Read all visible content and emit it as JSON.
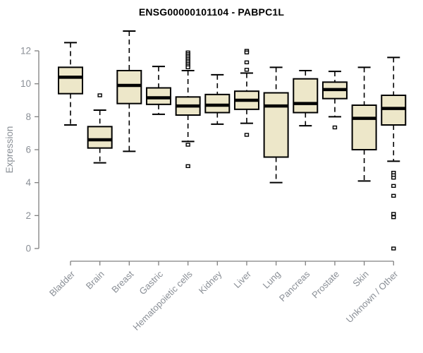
{
  "chart_data": {
    "type": "boxplot",
    "title": "ENSG00000101104 - PABPC1L",
    "ylabel": "Expression",
    "xlabel": "",
    "ylim": [
      0,
      12
    ],
    "yticks": [
      0,
      2,
      4,
      6,
      8,
      10,
      12
    ],
    "grid": false,
    "legend": false,
    "categories": [
      "Bladder",
      "Brain",
      "Breast",
      "Gastric",
      "Hematopoietic cells",
      "Kidney",
      "Liver",
      "Lung",
      "Pancreas",
      "Prostate",
      "Skin",
      "Unknown / Other"
    ],
    "series": [
      {
        "name": "Bladder",
        "min": 7.5,
        "q1": 9.4,
        "median": 10.4,
        "q3": 11.0,
        "max": 12.5,
        "outliers": []
      },
      {
        "name": "Brain",
        "min": 5.2,
        "q1": 6.1,
        "median": 6.6,
        "q3": 7.4,
        "max": 8.4,
        "outliers": [
          9.3
        ]
      },
      {
        "name": "Breast",
        "min": 5.9,
        "q1": 8.8,
        "median": 9.9,
        "q3": 10.8,
        "max": 13.2,
        "outliers": []
      },
      {
        "name": "Gastric",
        "min": 8.15,
        "q1": 8.75,
        "median": 9.15,
        "q3": 9.75,
        "max": 11.05,
        "outliers": []
      },
      {
        "name": "Hematopoietic cells",
        "min": 6.5,
        "q1": 8.1,
        "median": 8.65,
        "q3": 9.2,
        "max": 10.8,
        "outliers": [
          11.9,
          11.8,
          11.7,
          11.6,
          11.5,
          11.4,
          11.3,
          11.2,
          11.1,
          11.0,
          6.3,
          5.0
        ]
      },
      {
        "name": "Kidney",
        "min": 7.55,
        "q1": 8.25,
        "median": 8.7,
        "q3": 9.35,
        "max": 10.55,
        "outliers": []
      },
      {
        "name": "Liver",
        "min": 7.6,
        "q1": 8.45,
        "median": 9.0,
        "q3": 9.55,
        "max": 10.65,
        "outliers": [
          12.0,
          11.9,
          11.3,
          10.85,
          6.9
        ]
      },
      {
        "name": "Lung",
        "min": 4.0,
        "q1": 5.55,
        "median": 8.65,
        "q3": 9.45,
        "max": 11.0,
        "outliers": []
      },
      {
        "name": "Pancreas",
        "min": 7.45,
        "q1": 8.25,
        "median": 8.8,
        "q3": 10.3,
        "max": 10.8,
        "outliers": []
      },
      {
        "name": "Prostate",
        "min": 8.0,
        "q1": 9.1,
        "median": 9.65,
        "q3": 10.1,
        "max": 10.75,
        "outliers": [
          7.35
        ]
      },
      {
        "name": "Skin",
        "min": 4.1,
        "q1": 6.0,
        "median": 7.9,
        "q3": 8.7,
        "max": 11.0,
        "outliers": []
      },
      {
        "name": "Unknown / Other",
        "min": 5.3,
        "q1": 7.5,
        "median": 8.5,
        "q3": 9.3,
        "max": 11.6,
        "outliers": [
          4.6,
          4.45,
          4.3,
          3.8,
          3.2,
          2.1,
          1.9,
          0.0
        ]
      }
    ],
    "style": {
      "box_fill": "#EDE7C9",
      "box_border": "#000000",
      "median_color": "#000000",
      "whisker_color": "#000000",
      "outlier_fill": "#ffffff",
      "axis_color": "#808080",
      "tick_label_color": "#8a8f96",
      "title_color": "#000000"
    }
  }
}
